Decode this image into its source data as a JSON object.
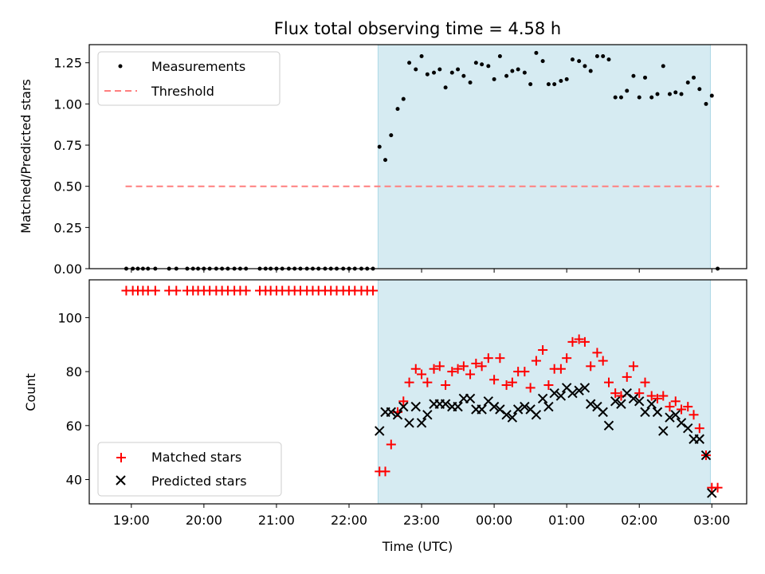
{
  "chart_data": [
    {
      "type": "scatter",
      "title": "Flux total observing time = 4.58 h",
      "xlabel": "",
      "ylabel": "Matched/Predicted stars",
      "ylim": [
        0,
        1.36
      ],
      "yticks": [
        "0.00",
        "0.25",
        "0.50",
        "0.75",
        "1.00",
        "1.25"
      ],
      "x_unit": "hours since 18:00 UTC",
      "x_range": [
        18.42,
        27.48
      ],
      "highlight_span": [
        22.4,
        26.98
      ],
      "highlight_color": "#add8e6",
      "threshold": {
        "name": "Threshold",
        "y": 0.5,
        "x_range": [
          18.92,
          27.1
        ],
        "color": "#ff7f7f"
      },
      "legend": {
        "position": "top-left",
        "entries": [
          "Measurements",
          "Threshold"
        ]
      },
      "series": [
        {
          "name": "Measurements",
          "color": "#000000",
          "points": [
            [
              18.93,
              0
            ],
            [
              19.02,
              0
            ],
            [
              19.09,
              0
            ],
            [
              19.16,
              0
            ],
            [
              19.23,
              0
            ],
            [
              19.33,
              0
            ],
            [
              19.52,
              0
            ],
            [
              19.62,
              0
            ],
            [
              19.77,
              0
            ],
            [
              19.85,
              0
            ],
            [
              19.92,
              0
            ],
            [
              20.0,
              0
            ],
            [
              20.08,
              0
            ],
            [
              20.17,
              0
            ],
            [
              20.25,
              0
            ],
            [
              20.33,
              0
            ],
            [
              20.42,
              0
            ],
            [
              20.5,
              0
            ],
            [
              20.58,
              0
            ],
            [
              20.77,
              0
            ],
            [
              20.85,
              0
            ],
            [
              20.92,
              0
            ],
            [
              21.0,
              0
            ],
            [
              21.08,
              0
            ],
            [
              21.17,
              0
            ],
            [
              21.25,
              0
            ],
            [
              21.33,
              0
            ],
            [
              21.42,
              0
            ],
            [
              21.5,
              0
            ],
            [
              21.58,
              0
            ],
            [
              21.67,
              0
            ],
            [
              21.75,
              0
            ],
            [
              21.83,
              0
            ],
            [
              21.92,
              0
            ],
            [
              22.0,
              0
            ],
            [
              22.08,
              0
            ],
            [
              22.17,
              0
            ],
            [
              22.25,
              0
            ],
            [
              22.33,
              0
            ],
            [
              22.42,
              0.74
            ],
            [
              22.5,
              0.66
            ],
            [
              22.58,
              0.81
            ],
            [
              22.67,
              0.97
            ],
            [
              22.75,
              1.03
            ],
            [
              22.83,
              1.25
            ],
            [
              22.92,
              1.21
            ],
            [
              23.0,
              1.29
            ],
            [
              23.08,
              1.18
            ],
            [
              23.17,
              1.19
            ],
            [
              23.25,
              1.21
            ],
            [
              23.33,
              1.1
            ],
            [
              23.42,
              1.19
            ],
            [
              23.5,
              1.21
            ],
            [
              23.58,
              1.17
            ],
            [
              23.67,
              1.13
            ],
            [
              23.75,
              1.25
            ],
            [
              23.83,
              1.24
            ],
            [
              23.92,
              1.23
            ],
            [
              24.0,
              1.15
            ],
            [
              24.08,
              1.29
            ],
            [
              24.17,
              1.17
            ],
            [
              24.25,
              1.2
            ],
            [
              24.33,
              1.21
            ],
            [
              24.42,
              1.19
            ],
            [
              24.5,
              1.12
            ],
            [
              24.58,
              1.31
            ],
            [
              24.67,
              1.26
            ],
            [
              24.75,
              1.12
            ],
            [
              24.83,
              1.12
            ],
            [
              24.92,
              1.14
            ],
            [
              25.0,
              1.15
            ],
            [
              25.08,
              1.27
            ],
            [
              25.17,
              1.26
            ],
            [
              25.25,
              1.23
            ],
            [
              25.33,
              1.2
            ],
            [
              25.42,
              1.29
            ],
            [
              25.5,
              1.29
            ],
            [
              25.58,
              1.27
            ],
            [
              25.67,
              1.04
            ],
            [
              25.75,
              1.04
            ],
            [
              25.83,
              1.08
            ],
            [
              25.92,
              1.17
            ],
            [
              26.0,
              1.04
            ],
            [
              26.08,
              1.16
            ],
            [
              26.17,
              1.04
            ],
            [
              26.25,
              1.06
            ],
            [
              26.33,
              1.23
            ],
            [
              26.42,
              1.06
            ],
            [
              26.5,
              1.07
            ],
            [
              26.58,
              1.06
            ],
            [
              26.67,
              1.13
            ],
            [
              26.75,
              1.16
            ],
            [
              26.83,
              1.09
            ],
            [
              26.92,
              1.0
            ],
            [
              27.0,
              1.05
            ],
            [
              27.08,
              0
            ]
          ]
        }
      ]
    },
    {
      "type": "scatter",
      "title": "",
      "xlabel": "Time (UTC)",
      "ylabel": "Count",
      "ylim": [
        31,
        114
      ],
      "yticks": [
        "40",
        "60",
        "80",
        "100"
      ],
      "x_unit": "hours since 18:00 UTC",
      "x_range": [
        18.42,
        27.48
      ],
      "xticks": [
        "19:00",
        "20:00",
        "21:00",
        "22:00",
        "23:00",
        "00:00",
        "01:00",
        "02:00",
        "03:00"
      ],
      "highlight_span": [
        22.4,
        26.98
      ],
      "highlight_color": "#add8e6",
      "legend": {
        "position": "bottom-left",
        "entries": [
          "Matched stars",
          "Predicted stars"
        ]
      },
      "series": [
        {
          "name": "Matched stars",
          "marker": "plus",
          "color": "#ff0000",
          "points": [
            [
              18.93,
              110
            ],
            [
              19.02,
              110
            ],
            [
              19.09,
              110
            ],
            [
              19.16,
              110
            ],
            [
              19.23,
              110
            ],
            [
              19.33,
              110
            ],
            [
              19.52,
              110
            ],
            [
              19.62,
              110
            ],
            [
              19.77,
              110
            ],
            [
              19.85,
              110
            ],
            [
              19.92,
              110
            ],
            [
              20.0,
              110
            ],
            [
              20.08,
              110
            ],
            [
              20.17,
              110
            ],
            [
              20.25,
              110
            ],
            [
              20.33,
              110
            ],
            [
              20.42,
              110
            ],
            [
              20.5,
              110
            ],
            [
              20.58,
              110
            ],
            [
              20.77,
              110
            ],
            [
              20.85,
              110
            ],
            [
              20.92,
              110
            ],
            [
              21.0,
              110
            ],
            [
              21.08,
              110
            ],
            [
              21.17,
              110
            ],
            [
              21.25,
              110
            ],
            [
              21.33,
              110
            ],
            [
              21.42,
              110
            ],
            [
              21.5,
              110
            ],
            [
              21.58,
              110
            ],
            [
              21.67,
              110
            ],
            [
              21.75,
              110
            ],
            [
              21.83,
              110
            ],
            [
              21.92,
              110
            ],
            [
              22.0,
              110
            ],
            [
              22.08,
              110
            ],
            [
              22.17,
              110
            ],
            [
              22.25,
              110
            ],
            [
              22.33,
              110
            ],
            [
              22.42,
              43
            ],
            [
              22.5,
              43
            ],
            [
              22.58,
              53
            ],
            [
              22.67,
              65
            ],
            [
              22.75,
              69
            ],
            [
              22.83,
              76
            ],
            [
              22.92,
              81
            ],
            [
              23.0,
              79
            ],
            [
              23.08,
              76
            ],
            [
              23.17,
              81
            ],
            [
              23.25,
              82
            ],
            [
              23.33,
              75
            ],
            [
              23.42,
              80
            ],
            [
              23.5,
              81
            ],
            [
              23.58,
              82
            ],
            [
              23.67,
              79
            ],
            [
              23.75,
              83
            ],
            [
              23.83,
              82
            ],
            [
              23.92,
              85
            ],
            [
              24.0,
              77
            ],
            [
              24.08,
              85
            ],
            [
              24.17,
              75
            ],
            [
              24.25,
              76
            ],
            [
              24.33,
              80
            ],
            [
              24.42,
              80
            ],
            [
              24.5,
              74
            ],
            [
              24.58,
              84
            ],
            [
              24.67,
              88
            ],
            [
              24.75,
              75
            ],
            [
              24.83,
              81
            ],
            [
              24.92,
              81
            ],
            [
              25.0,
              85
            ],
            [
              25.08,
              91
            ],
            [
              25.17,
              92
            ],
            [
              25.25,
              91
            ],
            [
              25.33,
              82
            ],
            [
              25.42,
              87
            ],
            [
              25.5,
              84
            ],
            [
              25.58,
              76
            ],
            [
              25.67,
              72
            ],
            [
              25.75,
              71
            ],
            [
              25.83,
              78
            ],
            [
              25.92,
              82
            ],
            [
              26.0,
              72
            ],
            [
              26.08,
              76
            ],
            [
              26.17,
              71
            ],
            [
              26.25,
              70
            ],
            [
              26.33,
              71
            ],
            [
              26.42,
              67
            ],
            [
              26.5,
              69
            ],
            [
              26.58,
              66
            ],
            [
              26.67,
              67
            ],
            [
              26.75,
              64
            ],
            [
              26.83,
              59
            ],
            [
              26.92,
              49
            ],
            [
              27.0,
              37
            ],
            [
              27.08,
              37
            ]
          ]
        },
        {
          "name": "Predicted stars",
          "marker": "x",
          "color": "#000000",
          "points": [
            [
              22.42,
              58
            ],
            [
              22.5,
              65
            ],
            [
              22.58,
              65
            ],
            [
              22.67,
              64
            ],
            [
              22.75,
              67
            ],
            [
              22.83,
              61
            ],
            [
              22.92,
              67
            ],
            [
              23.0,
              61
            ],
            [
              23.08,
              64
            ],
            [
              23.17,
              68
            ],
            [
              23.25,
              68
            ],
            [
              23.33,
              68
            ],
            [
              23.42,
              67
            ],
            [
              23.5,
              67
            ],
            [
              23.58,
              70
            ],
            [
              23.67,
              70
            ],
            [
              23.75,
              66
            ],
            [
              23.83,
              66
            ],
            [
              23.92,
              69
            ],
            [
              24.0,
              67
            ],
            [
              24.08,
              66
            ],
            [
              24.17,
              64
            ],
            [
              24.25,
              63
            ],
            [
              24.33,
              66
            ],
            [
              24.42,
              67
            ],
            [
              24.5,
              66
            ],
            [
              24.58,
              64
            ],
            [
              24.67,
              70
            ],
            [
              24.75,
              67
            ],
            [
              24.83,
              72
            ],
            [
              24.92,
              71
            ],
            [
              25.0,
              74
            ],
            [
              25.08,
              72
            ],
            [
              25.17,
              73
            ],
            [
              25.25,
              74
            ],
            [
              25.33,
              68
            ],
            [
              25.42,
              67
            ],
            [
              25.5,
              65
            ],
            [
              25.58,
              60
            ],
            [
              25.67,
              69
            ],
            [
              25.75,
              68
            ],
            [
              25.83,
              72
            ],
            [
              25.92,
              70
            ],
            [
              26.0,
              69
            ],
            [
              26.08,
              65
            ],
            [
              26.17,
              68
            ],
            [
              26.25,
              65
            ],
            [
              26.33,
              58
            ],
            [
              26.42,
              63
            ],
            [
              26.5,
              64
            ],
            [
              26.58,
              61
            ],
            [
              26.67,
              59
            ],
            [
              26.75,
              55
            ],
            [
              26.83,
              55
            ],
            [
              26.92,
              49
            ],
            [
              27.0,
              35
            ]
          ]
        }
      ]
    }
  ]
}
